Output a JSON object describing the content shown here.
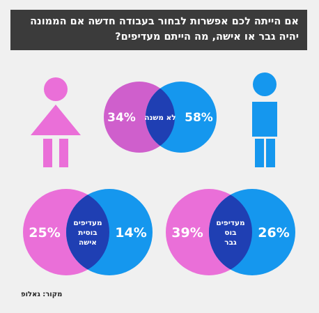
{
  "title_lines": [
    "אם הייתה לכם אפשרות לבחור בעבודה חדשה אם הממונה",
    "יהיה גבר או אישה, מה הייתם מעדיפים?"
  ],
  "source": "מקור: גאלופ",
  "colors": {
    "pink": "#ea6fd8",
    "blue": "#1597ee",
    "overlap": "#1f3fb3",
    "title_bg": "#3b3b3b",
    "background": "#f0f0f0"
  },
  "icons": [
    "female-figure-icon",
    "male-figure-icon"
  ],
  "chart_data": [
    {
      "type": "venn",
      "title": "לא משנה",
      "overlap_label": [
        "לא משנה"
      ],
      "series": [
        {
          "value": 34,
          "label": "34%",
          "color": "#cf5fcc",
          "group": "women"
        },
        {
          "value": 58,
          "label": "58%",
          "color": "#1597ee",
          "group": "men"
        }
      ]
    },
    {
      "type": "venn",
      "title": "מעדיפים בוסית אישה",
      "overlap_label": [
        "מעדיפים",
        "בוסית",
        "אישה"
      ],
      "series": [
        {
          "value": 25,
          "label": "25%",
          "color": "#ea6fd8",
          "group": "women"
        },
        {
          "value": 14,
          "label": "14%",
          "color": "#1597ee",
          "group": "men"
        }
      ]
    },
    {
      "type": "venn",
      "title": "מעדיפים בוס גבר",
      "overlap_label": [
        "מעדיפים",
        "בוס",
        "גבר"
      ],
      "series": [
        {
          "value": 39,
          "label": "39%",
          "color": "#ea6fd8",
          "group": "women"
        },
        {
          "value": 26,
          "label": "26%",
          "color": "#1597ee",
          "group": "men"
        }
      ]
    }
  ]
}
